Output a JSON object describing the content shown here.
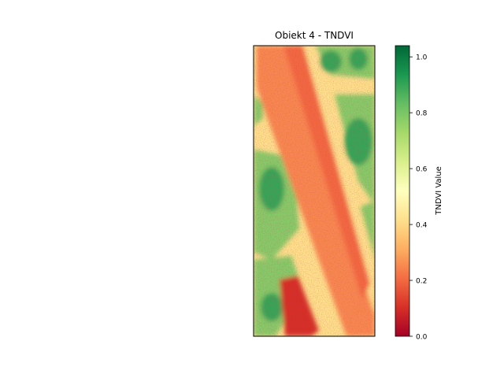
{
  "chart_data": {
    "type": "heatmap",
    "title": "Obiekt 4 - TNDVI",
    "colormap": "RdYlGn",
    "colorbar": {
      "label": "TNDVI Value",
      "vmin": 0.0,
      "vmax": 1.04,
      "ticks": [
        0.0,
        0.2,
        0.4,
        0.6,
        0.8,
        1.0
      ],
      "tick_labels": [
        "0.0",
        "0.2",
        "0.4",
        "0.6",
        "0.8",
        "1.0"
      ]
    },
    "axes_visible": false,
    "image_description_regions": [
      {
        "kind": "diagonal road band",
        "value": 0.25
      },
      {
        "kind": "road edge strips",
        "value": 0.42
      },
      {
        "kind": "vegetation patches",
        "value": 0.78
      },
      {
        "kind": "dense vegetation",
        "value": 0.9
      },
      {
        "kind": "building block",
        "value": 0.1
      }
    ]
  }
}
